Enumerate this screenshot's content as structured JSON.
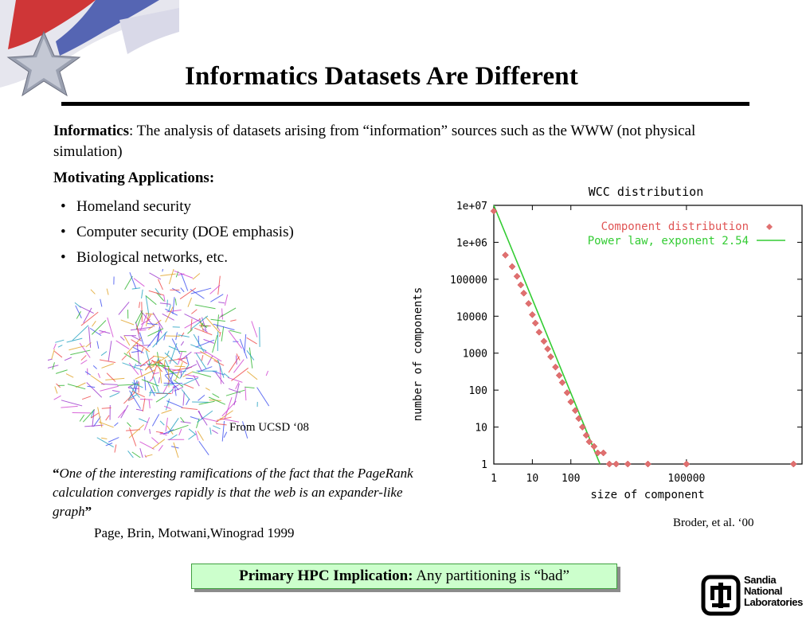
{
  "slide": {
    "title": "Informatics  Datasets Are Different",
    "intro": {
      "term": "Informatics",
      "definition": ": The analysis of datasets arising from “information” sources such as the WWW (not physical simulation)"
    },
    "motivating_heading": "Motivating Applications:",
    "bullets": [
      "Homeland security",
      "Computer security (DOE emphasis)",
      "Biological networks, etc."
    ],
    "network_caption": "From UCSD ‘08",
    "quote": {
      "open": "“",
      "text": "One of the interesting ramifications of the fact that the PageRank calculation converges rapidly is that the web is an expander-like graph",
      "close": "”",
      "attribution": "Page, Brin, Motwani,Winograd  1999"
    },
    "chart_caption": "Broder, et al. ‘00",
    "implication": {
      "label": "Primary HPC Implication:",
      "text": " Any partitioning is “bad”"
    },
    "logo": {
      "lines": [
        "Sandia",
        "National",
        "Laboratories"
      ]
    },
    "colors": {
      "implication_bg": "#ccffcc",
      "series_points": "#e05555",
      "power_law": "#33cc33",
      "flag_red": "#cc2222",
      "flag_blue": "#3b4da8"
    }
  },
  "chart_data": {
    "type": "scatter",
    "title": "WCC distribution",
    "xlabel": "size of component",
    "ylabel": "number of components",
    "x_scale": "log",
    "y_scale": "log",
    "xlim": [
      1,
      100000000
    ],
    "ylim": [
      1,
      10000000
    ],
    "x_ticks": [
      {
        "value": 1,
        "label": "1"
      },
      {
        "value": 10,
        "label": "10"
      },
      {
        "value": 100,
        "label": "100"
      },
      {
        "value": 100000,
        "label": "100000"
      }
    ],
    "y_ticks": [
      {
        "value": 1,
        "label": "1"
      },
      {
        "value": 10,
        "label": "10"
      },
      {
        "value": 100,
        "label": "100"
      },
      {
        "value": 1000,
        "label": "1000"
      },
      {
        "value": 10000,
        "label": "10000"
      },
      {
        "value": 100000,
        "label": "100000"
      },
      {
        "value": 1000000,
        "label": "1e+06"
      },
      {
        "value": 10000000,
        "label": "1e+07"
      }
    ],
    "legend_position": "top-right",
    "series": [
      {
        "name": "Component distribution",
        "marker": "diamond",
        "points": [
          [
            1,
            7000000
          ],
          [
            2,
            450000
          ],
          [
            3,
            220000
          ],
          [
            4,
            120000
          ],
          [
            5,
            70000
          ],
          [
            6,
            42000
          ],
          [
            8,
            22000
          ],
          [
            10,
            11000
          ],
          [
            12,
            6500
          ],
          [
            15,
            3700
          ],
          [
            20,
            2100
          ],
          [
            25,
            1300
          ],
          [
            30,
            800
          ],
          [
            40,
            420
          ],
          [
            50,
            250
          ],
          [
            60,
            160
          ],
          [
            80,
            85
          ],
          [
            100,
            48
          ],
          [
            130,
            28
          ],
          [
            160,
            17
          ],
          [
            200,
            10
          ],
          [
            250,
            6
          ],
          [
            300,
            4
          ],
          [
            400,
            3
          ],
          [
            500,
            2
          ],
          [
            700,
            2
          ],
          [
            1000,
            1
          ],
          [
            1500,
            1
          ],
          [
            3000,
            1
          ],
          [
            10000,
            1
          ],
          [
            100000,
            1
          ],
          [
            60000000,
            1
          ]
        ]
      },
      {
        "name": "Power law, exponent 2.54",
        "line": [
          [
            1,
            10000000
          ],
          [
            570,
            1
          ]
        ]
      }
    ]
  }
}
